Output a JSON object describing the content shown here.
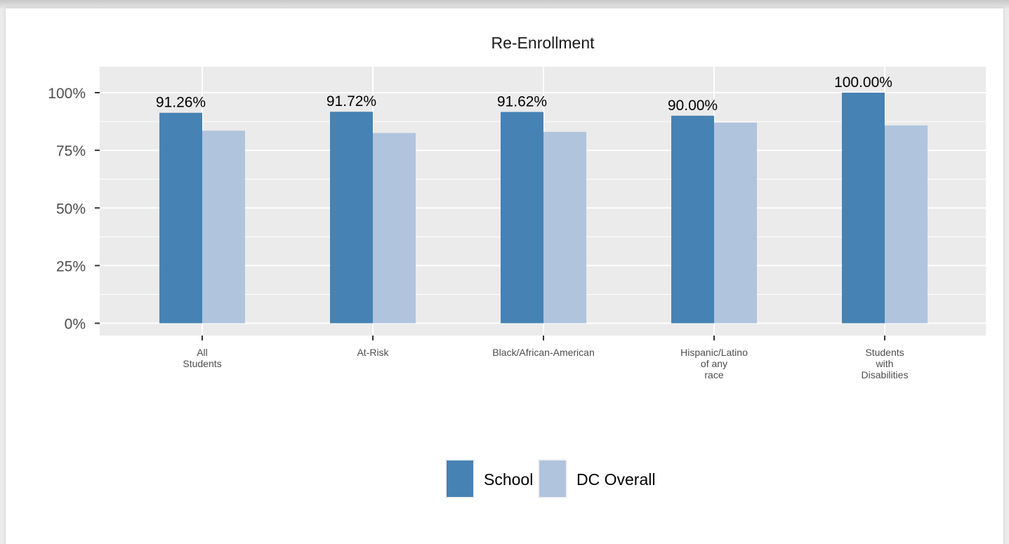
{
  "colors": {
    "school": "#4682b4",
    "dc_overall": "#b0c4de",
    "panel_background": "#ebebeb",
    "gridline": "#ffffff",
    "axis_text": "#4d4d4d"
  },
  "chart_data": {
    "type": "bar",
    "title": "Re-Enrollment",
    "xlabel": "",
    "ylabel": "",
    "ylim": [
      0,
      105
    ],
    "yticks": [
      0,
      25,
      50,
      75,
      100
    ],
    "ytick_labels": [
      "0%",
      "25%",
      "50%",
      "75%",
      "100%"
    ],
    "categories": [
      [
        "All",
        "Students"
      ],
      [
        "At-Risk"
      ],
      [
        "Black/African-American"
      ],
      [
        "Hispanic/Latino",
        "of any",
        "race"
      ],
      [
        "Students",
        "with",
        "Disabilities"
      ]
    ],
    "series": [
      {
        "name": "School",
        "values": [
          91.26,
          91.72,
          91.62,
          90.0,
          100.0
        ],
        "labels": [
          "91.26%",
          "91.72%",
          "91.62%",
          "90.00%",
          "100.00%"
        ]
      },
      {
        "name": "DC Overall",
        "values": [
          83.5,
          82.5,
          83.0,
          87.0,
          85.8
        ]
      }
    ],
    "grid": true,
    "legend_position": "bottom"
  }
}
